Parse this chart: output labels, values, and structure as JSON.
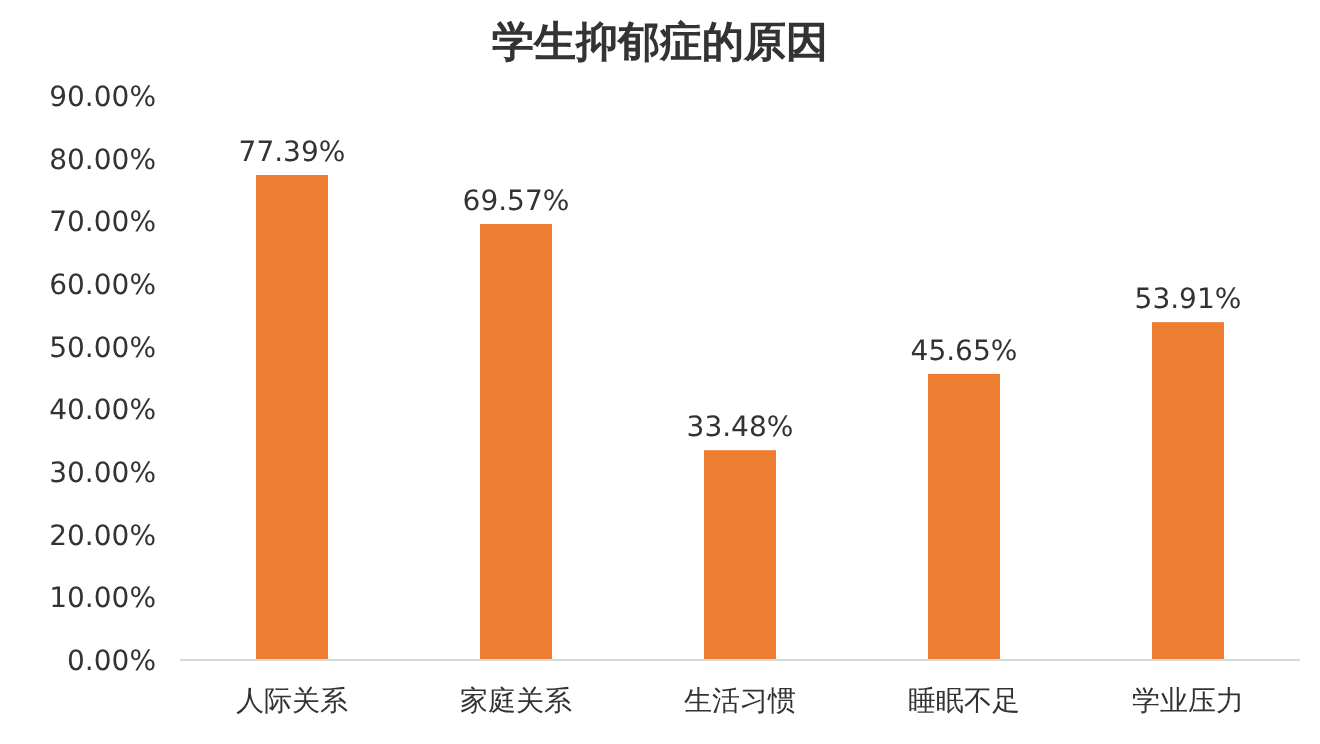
{
  "chart_data": {
    "type": "bar",
    "title": "学生抑郁症的原因",
    "categories": [
      "人际关系",
      "家庭关系",
      "生活习惯",
      "睡眠不足",
      "学业压力"
    ],
    "values": [
      77.39,
      69.57,
      33.48,
      45.65,
      53.91
    ],
    "value_labels": [
      "77.39%",
      "69.57%",
      "33.48%",
      "45.65%",
      "53.91%"
    ],
    "color": "#ed7d31",
    "ylim": [
      0,
      90
    ],
    "yticks": [
      {
        "value": 0,
        "label": "0.00%"
      },
      {
        "value": 10,
        "label": "10.00%"
      },
      {
        "value": 20,
        "label": "20.00%"
      },
      {
        "value": 30,
        "label": "30.00%"
      },
      {
        "value": 40,
        "label": "40.00%"
      },
      {
        "value": 50,
        "label": "50.00%"
      },
      {
        "value": 60,
        "label": "60.00%"
      },
      {
        "value": 70,
        "label": "70.00%"
      },
      {
        "value": 80,
        "label": "80.00%"
      },
      {
        "value": 90,
        "label": "90.00%"
      }
    ],
    "grid": false
  }
}
